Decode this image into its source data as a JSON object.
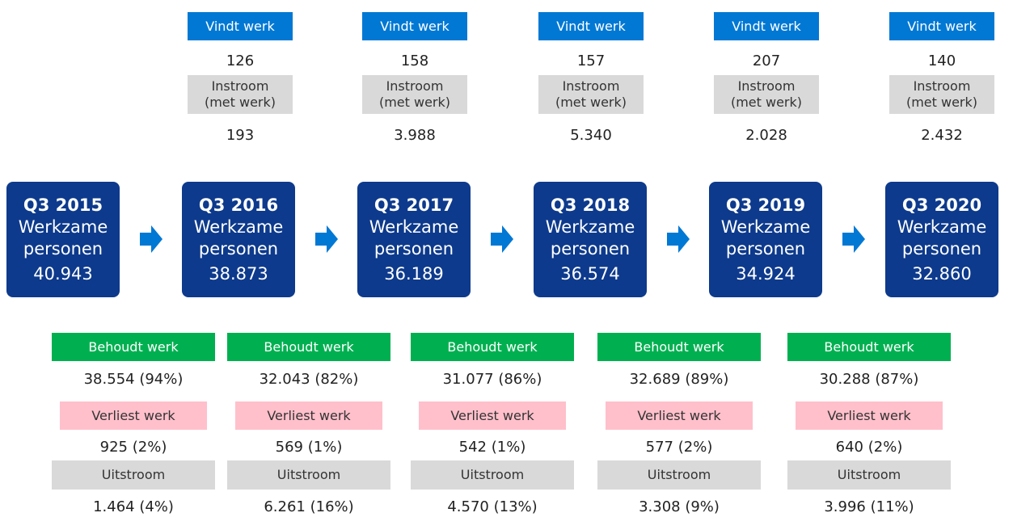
{
  "top": [
    {
      "found_label": "Vindt werk",
      "found": "126",
      "inflow_label": "Instroom\n(met werk)",
      "inflow": "193"
    },
    {
      "found_label": "Vindt werk",
      "found": "158",
      "inflow_label": "Instroom\n(met werk)",
      "inflow": "3.988"
    },
    {
      "found_label": "Vindt werk",
      "found": "157",
      "inflow_label": "Instroom\n(met werk)",
      "inflow": "5.340"
    },
    {
      "found_label": "Vindt werk",
      "found": "207",
      "inflow_label": "Instroom\n(met werk)",
      "inflow": "2.028"
    },
    {
      "found_label": "Vindt werk",
      "found": "140",
      "inflow_label": "Instroom\n(met werk)",
      "inflow": "2.432"
    }
  ],
  "periods": [
    {
      "quarter": "Q3 2015",
      "label": "Werkzame\npersonen",
      "value": "40.943"
    },
    {
      "quarter": "Q3 2016",
      "label": "Werkzame\npersonen",
      "value": "38.873"
    },
    {
      "quarter": "Q3 2017",
      "label": "Werkzame\npersonen",
      "value": "36.189"
    },
    {
      "quarter": "Q3 2018",
      "label": "Werkzame\npersonen",
      "value": "36.574"
    },
    {
      "quarter": "Q3 2019",
      "label": "Werkzame\npersonen",
      "value": "34.924"
    },
    {
      "quarter": "Q3 2020",
      "label": "Werkzame\npersonen",
      "value": "32.860"
    }
  ],
  "bottom": [
    {
      "keep_label": "Behoudt werk",
      "keep": "38.554  (94%)",
      "lose_label": "Verliest werk",
      "lose": "925  (2%)",
      "out_label": "Uitstroom",
      "out": "1.464  (4%)"
    },
    {
      "keep_label": "Behoudt werk",
      "keep": "32.043  (82%)",
      "lose_label": "Verliest werk",
      "lose": "569  (1%)",
      "out_label": "Uitstroom",
      "out": "6.261  (16%)"
    },
    {
      "keep_label": "Behoudt werk",
      "keep": "31.077  (86%)",
      "lose_label": "Verliest werk",
      "lose": "542  (1%)",
      "out_label": "Uitstroom",
      "out": "4.570  (13%)"
    },
    {
      "keep_label": "Behoudt werk",
      "keep": "32.689  (89%)",
      "lose_label": "Verliest werk",
      "lose": "577  (2%)",
      "out_label": "Uitstroom",
      "out": "3.308  (9%)"
    },
    {
      "keep_label": "Behoudt werk",
      "keep": "30.288  (87%)",
      "lose_label": "Verliest werk",
      "lose": "640  (2%)",
      "out_label": "Uitstroom",
      "out": "3.996  (11%)"
    }
  ]
}
